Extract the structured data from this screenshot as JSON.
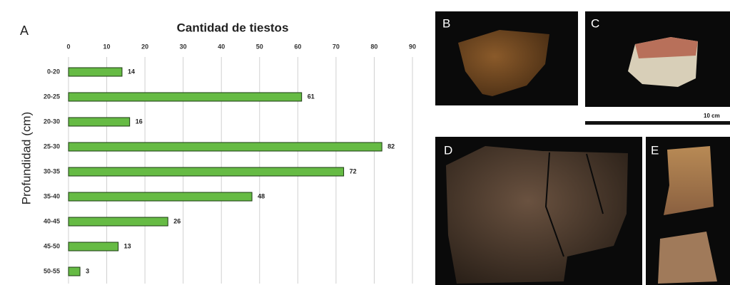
{
  "chart_data": {
    "type": "hbar",
    "panel_label": "A",
    "title": "Cantidad de tiestos",
    "y_label": "Profundidad (cm)",
    "categories": [
      "0-20",
      "20-25",
      "20-30",
      "25-30",
      "30-35",
      "35-40",
      "40-45",
      "45-50",
      "50-55"
    ],
    "values": [
      14,
      61,
      16,
      82,
      72,
      48,
      26,
      13,
      3
    ],
    "color": "#66bb44",
    "xlim": [
      0,
      90
    ],
    "xticks": [
      0,
      10,
      20,
      30,
      40,
      50,
      60,
      70,
      80,
      90
    ],
    "grid": true
  },
  "photos": {
    "labels": [
      "B",
      "C",
      "D",
      "E"
    ],
    "scale_label": "10 cm"
  }
}
